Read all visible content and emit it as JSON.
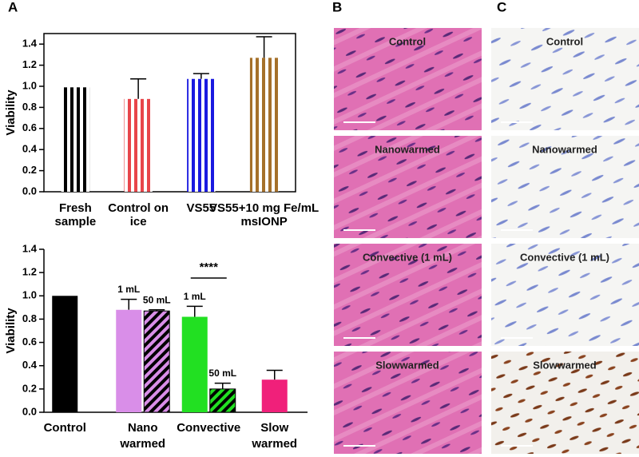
{
  "panels": {
    "letters": [
      "A",
      "B",
      "C"
    ],
    "B": [
      "Control",
      "Nanowarmed",
      "Convective (1 mL)",
      "Slowwarmed"
    ],
    "C": [
      "Control",
      "Nanowarmed",
      "Convective (1 mL)",
      "Slowwarmed"
    ]
  },
  "chart_data": [
    {
      "type": "bar",
      "y_label": "Viability",
      "categories": [
        "Fresh sample",
        "Control on ice",
        "VS55",
        "VS55+10 mg Fe/mL msIONP"
      ],
      "values": [
        0.99,
        0.88,
        1.07,
        1.27
      ],
      "errors": [
        null,
        0.19,
        0.05,
        0.2
      ],
      "colors": [
        "#000000",
        "#e8454a",
        "#1a1ae0",
        "#a5702a"
      ],
      "ylim": [
        0,
        1.5
      ],
      "yticks": [
        {
          "value": 0,
          "label": "0.0"
        },
        0.2,
        0.4,
        0.6,
        0.8,
        {
          "value": 1,
          "label": "1.0"
        },
        1.2,
        1.4
      ]
    },
    {
      "type": "grouped-bar",
      "y_label": "Viability",
      "groups": [
        {
          "name": "Control",
          "bars": [
            {
              "value": 1.0,
              "error": null,
              "color": "#000000",
              "hatched": false
            }
          ]
        },
        {
          "name": "Nano warmed",
          "bars": [
            {
              "label": "1 mL",
              "value": 0.88,
              "error": 0.09,
              "color": "#d98ee8",
              "hatched": false
            },
            {
              "label": "50 mL",
              "value": 0.87,
              "error": 0.01,
              "color": "#d98ee8",
              "hatched": true
            }
          ]
        },
        {
          "name": "Convective",
          "bars": [
            {
              "label": "1 mL",
              "value": 0.82,
              "error": 0.09,
              "color": "#22e022",
              "hatched": false
            },
            {
              "label": "50 mL",
              "value": 0.2,
              "error": 0.05,
              "color": "#22e022",
              "hatched": true
            }
          ]
        },
        {
          "name": "Slow warmed",
          "bars": [
            {
              "value": 0.28,
              "error": 0.08,
              "color": "#f0207a",
              "hatched": false
            }
          ]
        }
      ],
      "annotation": "****",
      "ylim": [
        0,
        1.4
      ],
      "yticks": [
        {
          "value": 0,
          "label": "0.0"
        },
        0.2,
        0.4,
        0.6,
        0.8,
        {
          "value": 1,
          "label": "1.0"
        },
        1.2,
        1.4
      ]
    }
  ]
}
